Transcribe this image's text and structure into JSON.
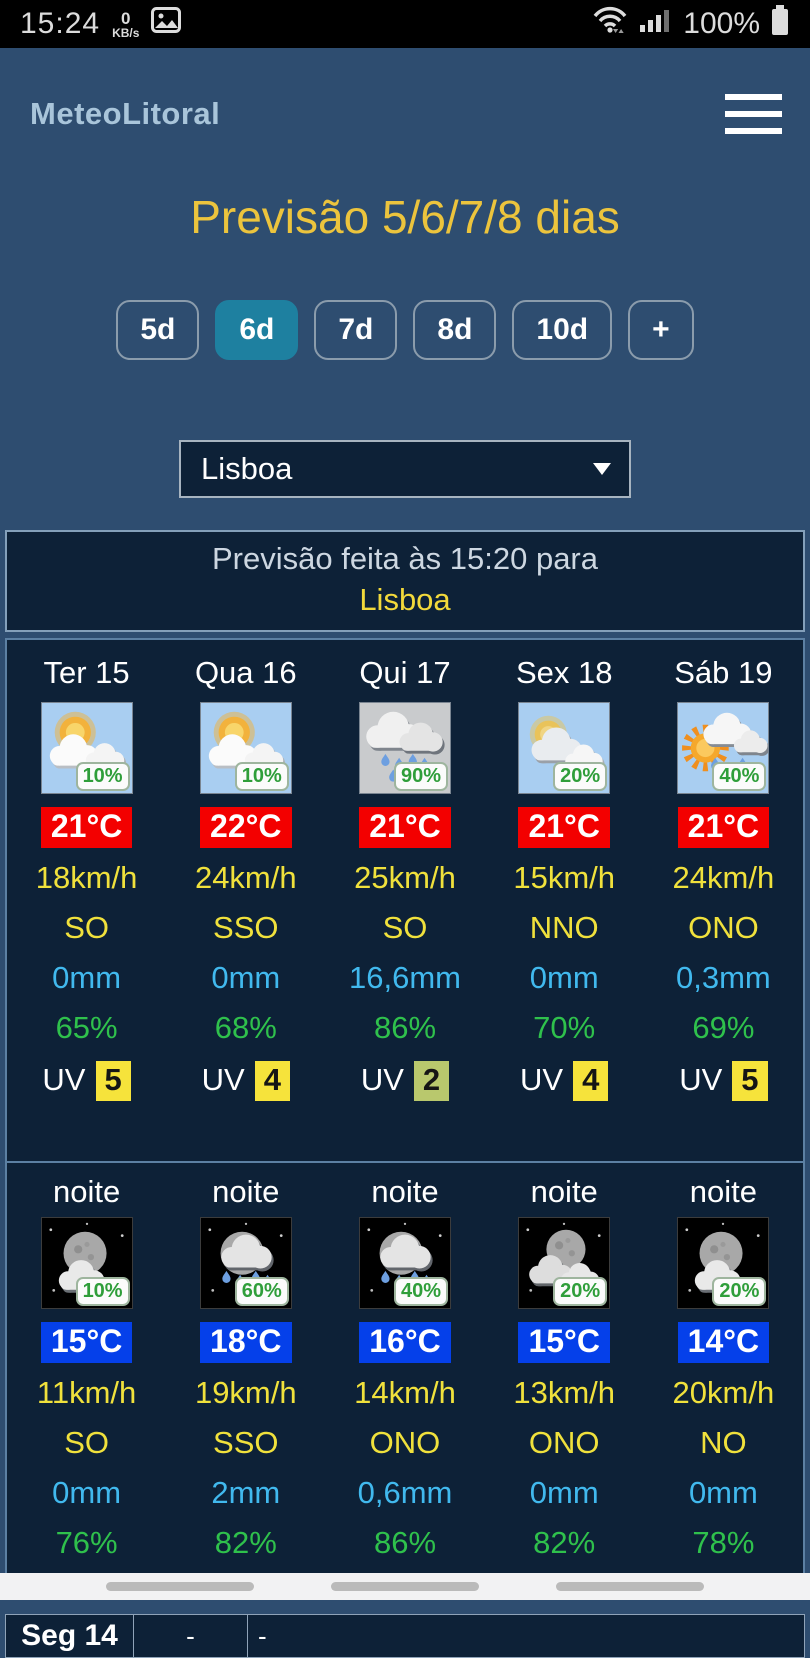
{
  "status_bar": {
    "time": "15:24",
    "net_speed": "0",
    "net_speed_unit": "KB/s",
    "battery": "100%"
  },
  "header": {
    "app_name": "MeteoLitoral"
  },
  "page": {
    "title": "Previsão 5/6/7/8 dias"
  },
  "day_buttons": [
    {
      "label": "5d",
      "active": false
    },
    {
      "label": "6d",
      "active": true
    },
    {
      "label": "7d",
      "active": false
    },
    {
      "label": "8d",
      "active": false
    },
    {
      "label": "10d",
      "active": false
    },
    {
      "label": "+",
      "active": false
    }
  ],
  "location_select": {
    "value": "Lisboa"
  },
  "info_box": {
    "line1": "Previsão feita às 15:20 para",
    "location": "Lisboa"
  },
  "day_forecast": {
    "columns": [
      {
        "day": "Ter 15",
        "icon": "sun-clouds",
        "pop": "10%",
        "temp": "21°C",
        "wind": "18km/h",
        "dir": "SO",
        "precip": "0mm",
        "humidity": "65%",
        "uv_label": "UV",
        "uv": "5",
        "uv_bg": "#f6e33b"
      },
      {
        "day": "Qua 16",
        "icon": "sun-clouds",
        "pop": "10%",
        "temp": "22°C",
        "wind": "24km/h",
        "dir": "SSO",
        "precip": "0mm",
        "humidity": "68%",
        "uv_label": "UV",
        "uv": "4",
        "uv_bg": "#f6e33b"
      },
      {
        "day": "Qui 17",
        "icon": "rain-clouds",
        "pop": "90%",
        "temp": "21°C",
        "wind": "25km/h",
        "dir": "SO",
        "precip": "16,6mm",
        "humidity": "86%",
        "uv_label": "UV",
        "uv": "2",
        "uv_bg": "#b9c86d"
      },
      {
        "day": "Sex 18",
        "icon": "clouds-sun",
        "pop": "20%",
        "temp": "21°C",
        "wind": "15km/h",
        "dir": "NNO",
        "precip": "0mm",
        "humidity": "70%",
        "uv_label": "UV",
        "uv": "4",
        "uv_bg": "#f6e33b"
      },
      {
        "day": "Sáb 19",
        "icon": "sun-rain",
        "pop": "40%",
        "temp": "21°C",
        "wind": "24km/h",
        "dir": "ONO",
        "precip": "0,3mm",
        "humidity": "69%",
        "uv_label": "UV",
        "uv": "5",
        "uv_bg": "#f6e33b"
      }
    ]
  },
  "night_forecast": {
    "label": "noite",
    "columns": [
      {
        "icon": "moon-cloud",
        "pop": "10%",
        "temp": "15°C",
        "wind": "11km/h",
        "dir": "SO",
        "precip": "0mm",
        "humidity": "76%"
      },
      {
        "icon": "moon-rain",
        "pop": "60%",
        "temp": "18°C",
        "wind": "19km/h",
        "dir": "SSO",
        "precip": "2mm",
        "humidity": "82%"
      },
      {
        "icon": "moon-rain",
        "pop": "40%",
        "temp": "16°C",
        "wind": "14km/h",
        "dir": "ONO",
        "precip": "0,6mm",
        "humidity": "86%"
      },
      {
        "icon": "moon-clouds",
        "pop": "20%",
        "temp": "15°C",
        "wind": "13km/h",
        "dir": "ONO",
        "precip": "0mm",
        "humidity": "82%"
      },
      {
        "icon": "moon-cloud",
        "pop": "20%",
        "temp": "14°C",
        "wind": "20km/h",
        "dir": "NO",
        "precip": "0mm",
        "humidity": "78%"
      }
    ]
  },
  "next_day_row": {
    "day": "Seg 14",
    "cell2": "-",
    "cell3": "-"
  },
  "colors": {
    "accent_yellow": "#ecc43d",
    "value_yellow": "#f0e13c",
    "precip_blue": "#41b9ee",
    "humidity_green": "#2fc14c",
    "temp_day_bg": "#f30000",
    "temp_night_bg": "#0540ea",
    "active_button_bg": "#1e80a0",
    "panel_bg": "#0d2137",
    "page_bg": "#2e4d70"
  }
}
